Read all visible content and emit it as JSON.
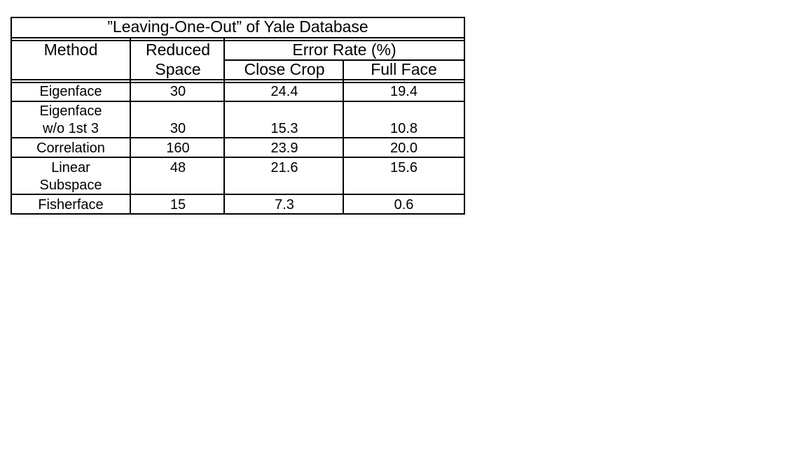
{
  "table": {
    "title": "”Leaving-One-Out” of Yale Database",
    "headers": {
      "method": "Method",
      "reduced_space_line1": "Reduced",
      "reduced_space_line2": "Space",
      "error_rate": "Error Rate (%)",
      "close_crop": "Close Crop",
      "full_face": "Full Face"
    },
    "rows": [
      {
        "method": [
          "Eigenface"
        ],
        "reduced_space": "30",
        "close_crop": "24.4",
        "full_face": "19.4"
      },
      {
        "method": [
          "Eigenface",
          "w/o 1st 3"
        ],
        "reduced_space": "30",
        "close_crop": "15.3",
        "full_face": "10.8"
      },
      {
        "method": [
          "Correlation"
        ],
        "reduced_space": "160",
        "close_crop": "23.9",
        "full_face": "20.0"
      },
      {
        "method": [
          "Linear",
          "Subspace"
        ],
        "reduced_space": "48",
        "close_crop": "21.6",
        "full_face": "15.6"
      },
      {
        "method": [
          "Fisherface"
        ],
        "reduced_space": "15",
        "close_crop": "7.3",
        "full_face": "0.6"
      }
    ]
  }
}
